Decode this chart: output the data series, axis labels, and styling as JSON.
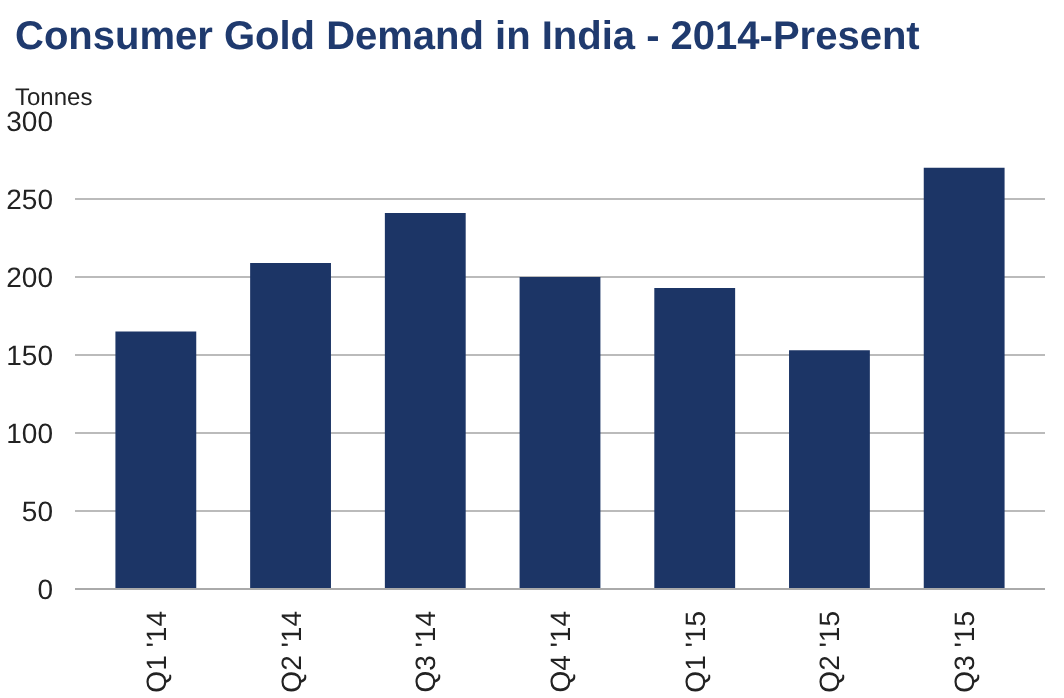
{
  "chart_data": {
    "type": "bar",
    "title": "Consumer Gold Demand in India - 2014-Present",
    "ylabel": "Tonnes",
    "categories": [
      "Q1 '14",
      "Q2 '14",
      "Q3 '14",
      "Q4 '14",
      "Q1 '15",
      "Q2 '15",
      "Q3 '15"
    ],
    "values": [
      165,
      209,
      241,
      200,
      193,
      153,
      270
    ],
    "color": "#1c3566",
    "ylim": [
      0,
      300
    ],
    "yticks": [
      0,
      50,
      100,
      150,
      200,
      250,
      300
    ],
    "grid": "y"
  }
}
